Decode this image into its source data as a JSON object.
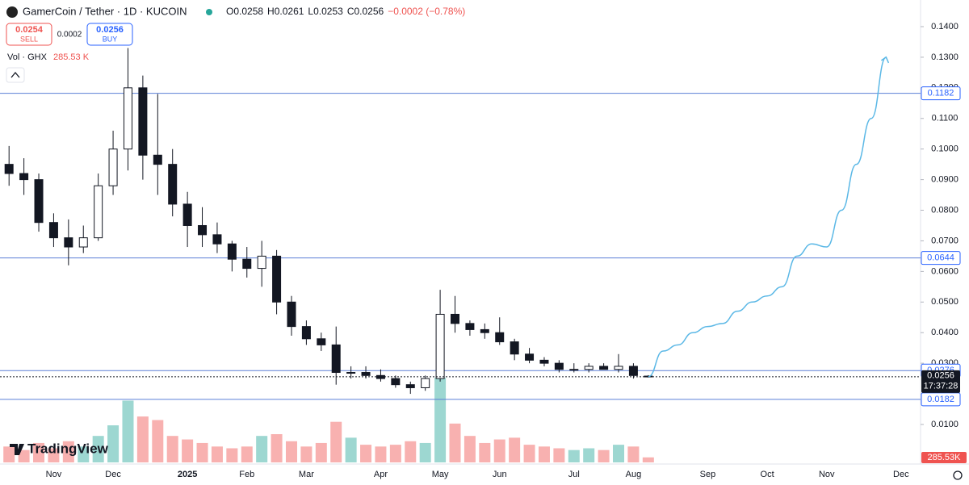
{
  "header": {
    "symbol": "GamerCoin / Tether · 1D · KUCOIN",
    "open": "O0.0258",
    "high": "H0.0261",
    "low": "L0.0253",
    "close": "C0.0256",
    "change": "−0.0002 (−0.78%)",
    "sell_price": "0.0254",
    "sell": "SELL",
    "spread": "0.0002",
    "buy_price": "0.0256",
    "buy": "BUY",
    "volume_name": "Vol · GHX",
    "volume_value": "285.53 K",
    "logo": "TradingView"
  },
  "chart_data": {
    "type": "candlestick",
    "categories": [
      null,
      null,
      null,
      "Nov",
      null,
      null,
      null,
      "Dec",
      null,
      null,
      null,
      null,
      "2025",
      null,
      null,
      null,
      "Feb",
      null,
      null,
      null,
      "Mar",
      null,
      null,
      null,
      null,
      "Apr",
      null,
      null,
      null,
      "May",
      null,
      null,
      null,
      "Jun",
      null,
      null,
      null,
      null,
      "Jul",
      null,
      null,
      null,
      "Aug",
      null,
      null,
      null,
      null,
      "Sep",
      null,
      null,
      null,
      "Oct",
      null,
      null,
      null,
      "Nov",
      null,
      null,
      null,
      null,
      "Dec"
    ],
    "open": [
      0.095,
      0.092,
      0.09,
      0.076,
      0.071,
      0.068,
      0.071,
      0.088,
      0.1,
      0.12,
      0.098,
      0.095,
      0.082,
      0.075,
      0.072,
      0.069,
      0.064,
      0.061,
      0.065,
      0.05,
      0.042,
      0.038,
      0.036,
      0.027,
      0.027,
      0.026,
      0.025,
      0.023,
      0.022,
      0.025,
      0.046,
      0.043,
      0.041,
      0.04,
      0.037,
      0.033,
      0.031,
      0.03,
      0.028,
      0.028,
      0.029,
      0.028,
      0.029,
      0.0258,
      null,
      null,
      null,
      null,
      null,
      null,
      null,
      null,
      null,
      null,
      null,
      null,
      null,
      null,
      null,
      null,
      null
    ],
    "high": [
      0.101,
      0.097,
      0.092,
      0.079,
      0.077,
      0.075,
      0.092,
      0.106,
      0.133,
      0.124,
      0.118,
      0.1,
      0.086,
      0.081,
      0.076,
      0.07,
      0.068,
      0.07,
      0.067,
      0.052,
      0.044,
      0.04,
      0.042,
      0.029,
      0.029,
      0.028,
      0.026,
      0.024,
      0.026,
      0.054,
      0.052,
      0.044,
      0.043,
      0.045,
      0.038,
      0.035,
      0.032,
      0.031,
      0.03,
      0.03,
      0.03,
      0.033,
      0.03,
      0.0261,
      null,
      null,
      null,
      null,
      null,
      null,
      null,
      null,
      null,
      null,
      null,
      null,
      null,
      null,
      null,
      null,
      null
    ],
    "low": [
      0.088,
      0.085,
      0.073,
      0.068,
      0.062,
      0.066,
      0.07,
      0.085,
      0.093,
      0.09,
      0.085,
      0.078,
      0.068,
      0.068,
      0.066,
      0.06,
      0.058,
      0.055,
      0.046,
      0.039,
      0.036,
      0.034,
      0.023,
      0.025,
      0.025,
      0.024,
      0.022,
      0.02,
      0.021,
      0.024,
      0.04,
      0.039,
      0.038,
      0.036,
      0.031,
      0.03,
      0.029,
      0.027,
      0.027,
      0.027,
      0.028,
      0.027,
      0.025,
      0.0253,
      null,
      null,
      null,
      null,
      null,
      null,
      null,
      null,
      null,
      null,
      null,
      null,
      null,
      null,
      null,
      null,
      null
    ],
    "close": [
      0.092,
      0.09,
      0.076,
      0.071,
      0.068,
      0.071,
      0.088,
      0.1,
      0.12,
      0.098,
      0.095,
      0.082,
      0.075,
      0.072,
      0.069,
      0.064,
      0.061,
      0.065,
      0.05,
      0.042,
      0.038,
      0.036,
      0.027,
      0.027,
      0.026,
      0.025,
      0.023,
      0.022,
      0.025,
      0.046,
      0.043,
      0.041,
      0.04,
      0.037,
      0.033,
      0.031,
      0.03,
      0.028,
      0.028,
      0.029,
      0.028,
      0.029,
      0.026,
      0.0256,
      null,
      null,
      null,
      null,
      null,
      null,
      null,
      null,
      null,
      null,
      null,
      null,
      null,
      null,
      null,
      null,
      null
    ],
    "volume": {
      "values": [
        900,
        700,
        1100,
        800,
        1200,
        900,
        1500,
        2100,
        3500,
        2600,
        2400,
        1500,
        1300,
        1100,
        900,
        800,
        900,
        1500,
        1600,
        1200,
        900,
        1100,
        2300,
        1400,
        1000,
        900,
        1000,
        1200,
        1100,
        4800,
        2200,
        1500,
        1100,
        1300,
        1400,
        1000,
        900,
        800,
        700,
        800,
        700,
        1000,
        900,
        285.53,
        null,
        null,
        null,
        null,
        null,
        null,
        null,
        null,
        null,
        null,
        null,
        null,
        null,
        null,
        null,
        null,
        null
      ],
      "last_label": "285.53K",
      "up_color": "#26a69a",
      "down_color": "#ef5350"
    },
    "projection": {
      "color": "#5bb8e6",
      "values": [
        null,
        null,
        null,
        null,
        null,
        null,
        null,
        null,
        null,
        null,
        null,
        null,
        null,
        null,
        null,
        null,
        null,
        null,
        null,
        null,
        null,
        null,
        null,
        null,
        null,
        null,
        null,
        null,
        null,
        null,
        null,
        null,
        null,
        null,
        null,
        null,
        null,
        null,
        null,
        null,
        null,
        null,
        null,
        0.0256,
        0.034,
        0.036,
        0.04,
        0.042,
        0.043,
        0.047,
        0.05,
        0.052,
        0.055,
        0.065,
        0.069,
        0.068,
        0.08,
        0.095,
        0.11,
        0.13,
        null
      ]
    },
    "levels": [
      0.1182,
      0.0644,
      0.0276,
      0.0182
    ],
    "level_color": "#5b7fd6",
    "current_price": 0.0256,
    "countdown": "17:37:28",
    "ylim": [
      -0.0024,
      0.1487
    ],
    "yticks": [
      {
        "value": 0.01,
        "label": "0.0100"
      },
      {
        "value": 0.02,
        "label": "0.0200"
      },
      {
        "value": 0.03,
        "label": "0.0300"
      },
      {
        "value": 0.04,
        "label": "0.0400"
      },
      {
        "value": 0.05,
        "label": "0.0500"
      },
      {
        "value": 0.06,
        "label": "0.0600"
      },
      {
        "value": 0.07,
        "label": "0.0700"
      },
      {
        "value": 0.08,
        "label": "0.0800"
      },
      {
        "value": 0.09,
        "label": "0.0900"
      },
      {
        "value": 0.1,
        "label": "0.1000"
      },
      {
        "value": 0.11,
        "label": "0.1100"
      },
      {
        "value": 0.12,
        "label": "0.1200"
      },
      {
        "value": 0.13,
        "label": "0.1300"
      },
      {
        "value": 0.14,
        "label": "0.1400"
      }
    ]
  }
}
